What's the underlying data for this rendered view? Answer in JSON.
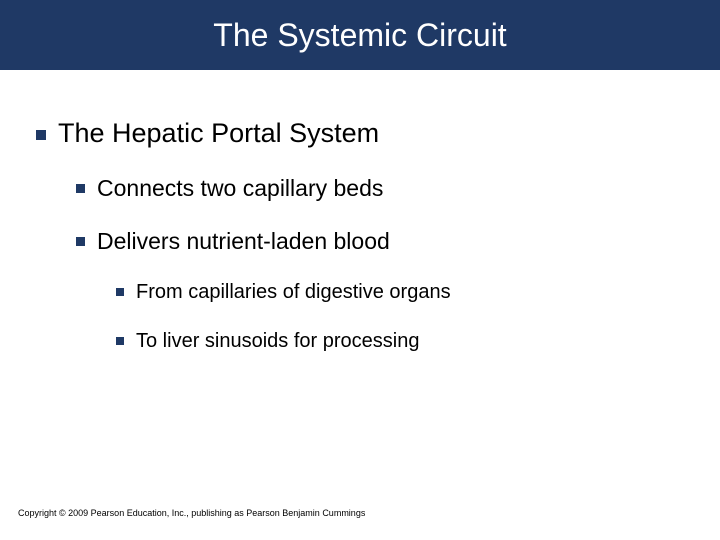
{
  "title": {
    "text": "The Systemic Circuit",
    "bar_color": "#1f3965",
    "text_color": "#ffffff",
    "fontsize": 32
  },
  "bullets": {
    "square_color": "#1f3965",
    "items": [
      {
        "level": 1,
        "text": "The Hepatic Portal System"
      },
      {
        "level": 2,
        "text": "Connects two capillary beds"
      },
      {
        "level": 2,
        "text": "Delivers nutrient-laden blood"
      },
      {
        "level": 3,
        "text": "From capillaries of digestive organs"
      },
      {
        "level": 3,
        "text": "To liver sinusoids for processing"
      }
    ]
  },
  "copyright": "Copyright © 2009 Pearson Education, Inc., publishing as Pearson Benjamin Cummings",
  "background_color": "#ffffff"
}
